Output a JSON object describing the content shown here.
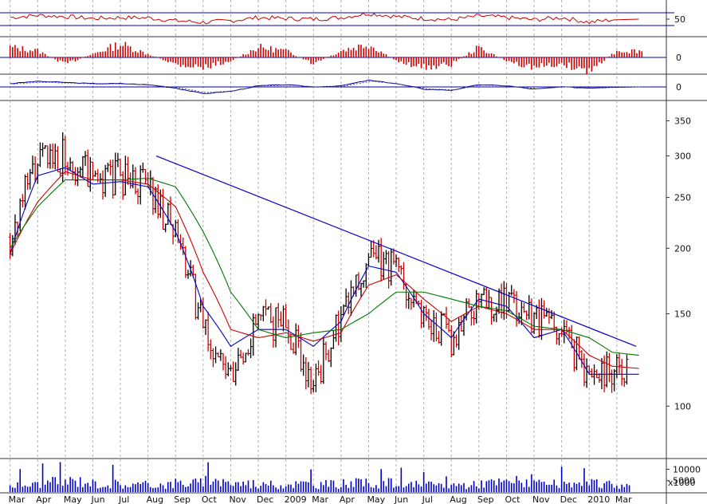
{
  "chart_data": {
    "type": "candlestick",
    "x_axis": {
      "tick_labels": [
        "Mar",
        "Apr",
        "May",
        "Jun",
        "Jul",
        "Aug",
        "Sep",
        "Oct",
        "Nov",
        "Dec",
        "2009",
        "Mar",
        "Apr",
        "May",
        "Jun",
        "Jul",
        "Aug",
        "Sep",
        "Oct",
        "Nov",
        "Dec",
        "2010",
        "Mar"
      ]
    },
    "price_panel": {
      "scale": "log",
      "ylim": [
        80,
        380
      ],
      "y_ticks": [
        350,
        300,
        250,
        200,
        150,
        100
      ],
      "approx_close_by_month": [
        210,
        290,
        305,
        270,
        275,
        265,
        210,
        140,
        110,
        145,
        145,
        110,
        145,
        190,
        185,
        150,
        135,
        160,
        155,
        150,
        140,
        115,
        120
      ],
      "moving_averages": [
        {
          "color": "#0000cc",
          "values": [
            195,
            275,
            285,
            265,
            268,
            262,
            215,
            155,
            130,
            140,
            140,
            130,
            145,
            185,
            180,
            150,
            135,
            160,
            155,
            135,
            140,
            115,
            115
          ]
        },
        {
          "color": "#cc0000",
          "values": [
            195,
            245,
            280,
            270,
            270,
            265,
            240,
            180,
            140,
            135,
            138,
            133,
            138,
            170,
            178,
            160,
            145,
            155,
            150,
            140,
            140,
            125,
            118
          ]
        },
        {
          "color": "#007700",
          "values": [
            200,
            240,
            270,
            270,
            270,
            272,
            262,
            215,
            165,
            140,
            135,
            138,
            140,
            150,
            165,
            165,
            160,
            155,
            152,
            142,
            140,
            135,
            125
          ]
        }
      ],
      "trendline": {
        "color": "#0000cc",
        "from": {
          "month_index": 5.3,
          "value": 300
        },
        "to": {
          "month_index": 22.7,
          "value": 130
        }
      },
      "ylim_note": "log scale"
    },
    "rsi_panel": {
      "y_ticks": [
        50
      ],
      "reference_lines": [
        70,
        30
      ],
      "ylim": [
        0,
        100
      ],
      "approx_values_by_month": [
        55,
        62,
        58,
        52,
        55,
        54,
        45,
        40,
        45,
        55,
        52,
        50,
        55,
        68,
        58,
        52,
        48,
        60,
        55,
        48,
        55,
        40,
        50
      ]
    },
    "histogram_panel": {
      "y_ticks": [
        0
      ],
      "approx_values_by_month": [
        3,
        2,
        -2,
        1,
        4,
        1,
        -2,
        -3,
        -1,
        3,
        2,
        -2,
        2,
        4,
        -1,
        -3,
        -2,
        3,
        -1,
        -3,
        -2,
        -4,
        2
      ]
    },
    "macd_panel": {
      "y_ticks": [
        0
      ],
      "approx_values_by_month": [
        3,
        5,
        4,
        3,
        3,
        2,
        -1,
        -6,
        -4,
        1,
        2,
        0,
        1,
        6,
        3,
        -2,
        -3,
        2,
        1,
        -2,
        0,
        -1,
        0
      ]
    },
    "volume_panel": {
      "unit_label": "x1000",
      "y_ticks": [
        10000,
        5000
      ],
      "approx_values_by_month": [
        3000,
        4000,
        4500,
        3500,
        3000,
        3200,
        3800,
        4200,
        3600,
        3000,
        3400,
        3200,
        3600,
        3800,
        3000,
        2800,
        3000,
        3800,
        4500,
        3200,
        3000,
        3400,
        2800
      ]
    }
  }
}
